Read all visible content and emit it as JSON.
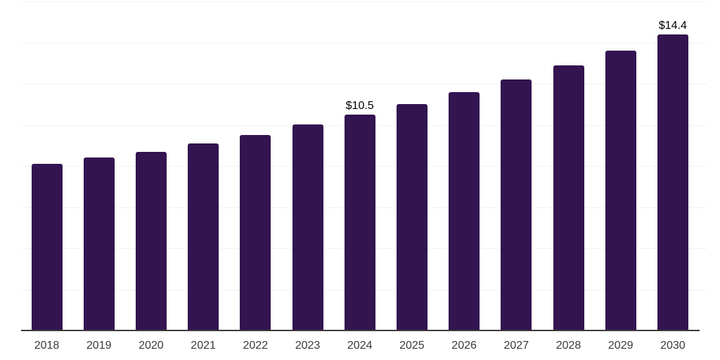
{
  "chart_data": {
    "type": "bar",
    "title": "",
    "xlabel": "",
    "ylabel": "",
    "categories": [
      "2018",
      "2019",
      "2020",
      "2021",
      "2022",
      "2023",
      "2024",
      "2025",
      "2026",
      "2027",
      "2028",
      "2029",
      "2030"
    ],
    "values": [
      8.1,
      8.4,
      8.7,
      9.1,
      9.5,
      10.0,
      10.5,
      11.0,
      11.6,
      12.2,
      12.9,
      13.6,
      14.4
    ],
    "data_labels": [
      "",
      "",
      "",
      "",
      "",
      "",
      "$10.5",
      "",
      "",
      "",
      "",
      "",
      "$14.4"
    ],
    "ylim": [
      0,
      16
    ],
    "gridline_step": 2,
    "grid": "horizontal",
    "legend_position": "none",
    "colors": {
      "bar": "#331450",
      "axis_line": "#3a3a3a",
      "gridline": "#f2f2f2",
      "tick_label": "#3a3a3a",
      "data_label": "#000000",
      "background": "#ffffff"
    }
  }
}
